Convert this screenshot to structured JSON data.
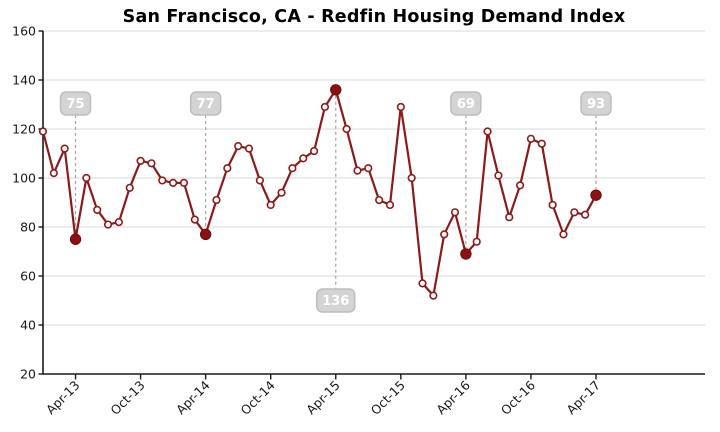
{
  "chart_data": {
    "type": "line",
    "title": "San Francisco, CA - Redfin Housing Demand Index",
    "xlabel": "",
    "ylabel": "",
    "ylim": [
      20,
      160
    ],
    "y_ticks": [
      20,
      40,
      60,
      80,
      100,
      120,
      140,
      160
    ],
    "grid": "horizontal",
    "legend": "none",
    "categories": [
      "Jan-13",
      "Feb-13",
      "Mar-13",
      "Apr-13",
      "May-13",
      "Jun-13",
      "Jul-13",
      "Aug-13",
      "Sep-13",
      "Oct-13",
      "Nov-13",
      "Dec-13",
      "Jan-14",
      "Feb-14",
      "Mar-14",
      "Apr-14",
      "May-14",
      "Jun-14",
      "Jul-14",
      "Aug-14",
      "Sep-14",
      "Oct-14",
      "Nov-14",
      "Dec-14",
      "Jan-15",
      "Feb-15",
      "Mar-15",
      "Apr-15",
      "May-15",
      "Jun-15",
      "Jul-15",
      "Aug-15",
      "Sep-15",
      "Oct-15",
      "Nov-15",
      "Dec-15",
      "Jan-16",
      "Feb-16",
      "Mar-16",
      "Apr-16",
      "May-16",
      "Jun-16",
      "Jul-16",
      "Aug-16",
      "Sep-16",
      "Oct-16",
      "Nov-16",
      "Dec-16",
      "Jan-17",
      "Feb-17",
      "Mar-17",
      "Apr-17"
    ],
    "series": [
      {
        "name": "Redfin Housing Demand Index",
        "values": [
          119,
          102,
          112,
          75,
          100,
          87,
          81,
          82,
          96,
          107,
          106,
          99,
          98,
          98,
          83,
          77,
          91,
          104,
          113,
          112,
          99,
          89,
          94,
          104,
          108,
          111,
          129,
          136,
          120,
          103,
          104,
          91,
          89,
          129,
          100,
          57,
          52,
          77,
          86,
          69,
          74,
          119,
          101,
          84,
          97,
          116,
          114,
          89,
          77,
          86,
          85,
          93
        ]
      }
    ],
    "x_tick_labels": [
      "Apr-13",
      "Oct-13",
      "Apr-14",
      "Oct-14",
      "Apr-15",
      "Oct-15",
      "Apr-16",
      "Oct-16",
      "Apr-17"
    ],
    "x_tick_indices": [
      3,
      9,
      15,
      21,
      27,
      33,
      39,
      45,
      51
    ],
    "annotations": [
      {
        "label": "75",
        "category": "Apr-13",
        "index": 3,
        "value": 75,
        "placement": "above"
      },
      {
        "label": "77",
        "category": "Apr-14",
        "index": 15,
        "value": 77,
        "placement": "above"
      },
      {
        "label": "136",
        "category": "Apr-15",
        "index": 27,
        "value": 136,
        "placement": "below"
      },
      {
        "label": "69",
        "category": "Apr-16",
        "index": 39,
        "value": 69,
        "placement": "above"
      },
      {
        "label": "93",
        "category": "Apr-17",
        "index": 51,
        "value": 93,
        "placement": "above"
      }
    ],
    "colors": {
      "line": "#8b1a1a",
      "marker_fill": "#ffffff",
      "marker_edge": "#8b1a1a",
      "highlight_dot": "#8a1212",
      "highlight_dot_edge": "#6e0d0d",
      "callout_bg": "#d4d4d4",
      "callout_border": "#bdbdbd",
      "callout_text": "#ffffff",
      "leader": "#b39b9b",
      "grid": "#d9d9d9",
      "axis": "#1a1a1a",
      "tick_text": "#1a1a1a",
      "title_text": "#000000",
      "background": "#ffffff"
    }
  }
}
